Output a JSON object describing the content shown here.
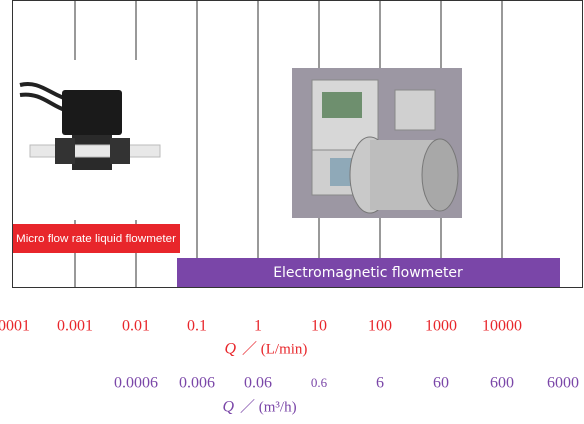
{
  "devices": [
    {
      "label": "Micro flow rate liquid flowmeter"
    },
    {
      "label": "Electromagnetic flowmeter"
    }
  ],
  "scale_l_min": {
    "ticks": [
      "0001",
      "0.001",
      "0.01",
      "0.1",
      "1",
      "10",
      "100",
      "1000",
      "10000"
    ],
    "symbol": "Q",
    "unit": "／ (L/min)"
  },
  "scale_m3_h": {
    "ticks": [
      "0.0006",
      "0.006",
      "0.06",
      "0.6",
      "6",
      "60",
      "600",
      "6000"
    ],
    "symbol": "Q",
    "unit": "／ (m³/h)"
  }
}
